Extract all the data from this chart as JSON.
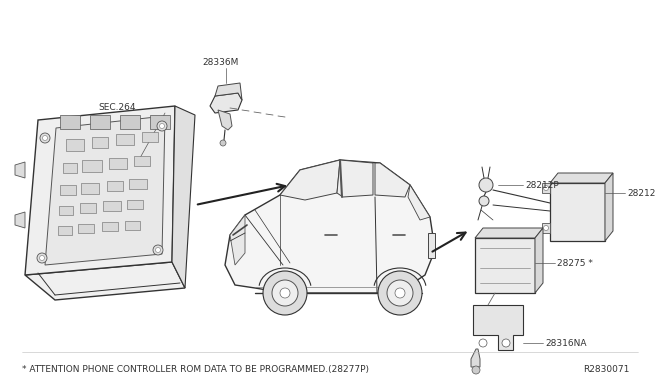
{
  "background_color": "#ffffff",
  "ref_number": "R2830071",
  "footnote": "* ATTENTION PHONE CONTROLLER ROM DATA TO BE PROGRAMMED.(28277P)",
  "labels": {
    "sec264": "SEC.264",
    "p28336M": "28336M",
    "p28212P": "28212P",
    "p28212": "28212",
    "p28275": "28275 *",
    "p28316NA": "28316NA"
  },
  "line_color": "#333333",
  "text_color": "#333333",
  "font_size": 6.5
}
